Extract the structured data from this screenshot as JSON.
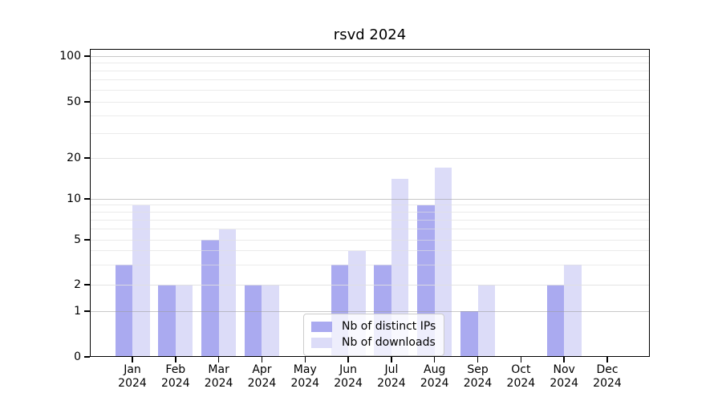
{
  "title": "rsvd 2024",
  "chart_data": {
    "type": "bar",
    "title": "rsvd 2024",
    "yscale": "symlog",
    "yticks": [
      0,
      1,
      2,
      5,
      10,
      20,
      50,
      100
    ],
    "ylim": [
      0,
      110
    ],
    "grid": "on (decade lines darker, intermediate lines lighter)",
    "legend_position": "lower center inside plot",
    "categories": [
      {
        "month": "Jan",
        "year": "2024"
      },
      {
        "month": "Feb",
        "year": "2024"
      },
      {
        "month": "Mar",
        "year": "2024"
      },
      {
        "month": "Apr",
        "year": "2024"
      },
      {
        "month": "May",
        "year": "2024"
      },
      {
        "month": "Jun",
        "year": "2024"
      },
      {
        "month": "Jul",
        "year": "2024"
      },
      {
        "month": "Aug",
        "year": "2024"
      },
      {
        "month": "Sep",
        "year": "2024"
      },
      {
        "month": "Oct",
        "year": "2024"
      },
      {
        "month": "Nov",
        "year": "2024"
      },
      {
        "month": "Dec",
        "year": "2024"
      }
    ],
    "series": [
      {
        "name": "Nb of distinct IPs",
        "color": "#aaaaf0",
        "values": [
          3,
          2,
          5,
          2,
          0,
          3,
          3,
          9,
          1,
          0,
          2,
          0
        ]
      },
      {
        "name": "Nb of downloads",
        "color": "#dcdcf8",
        "values": [
          9,
          2,
          6,
          2,
          0,
          4,
          14,
          17,
          2,
          0,
          3,
          0
        ]
      }
    ]
  },
  "colors": {
    "background": "#ffffff",
    "axis": "#000000",
    "text": "#000000",
    "grid_major": "#c9c9c9",
    "grid_minor": "#ececec",
    "legend_border": "#cccccc"
  }
}
